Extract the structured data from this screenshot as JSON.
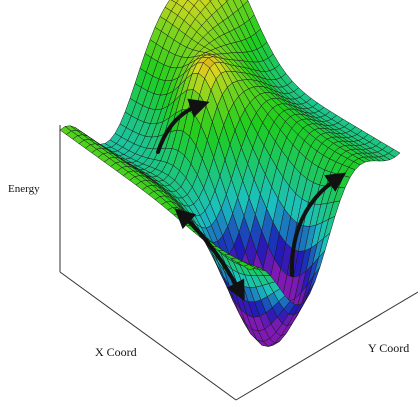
{
  "axes": {
    "z_label": "Energy",
    "x_label": "X Coord",
    "y_label": "Y Coord"
  }
}
